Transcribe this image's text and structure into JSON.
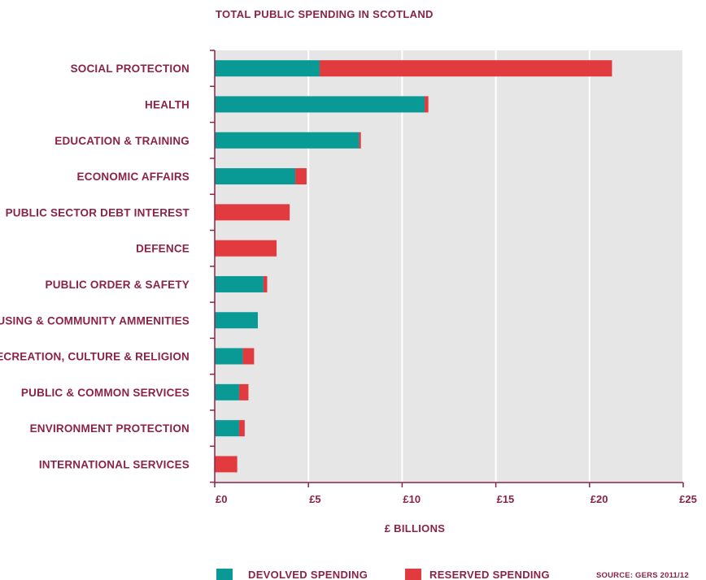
{
  "colors": {
    "devolved": "#0a9a96",
    "reserved": "#e23b3f",
    "text": "#8b2346",
    "plot_background": "#e6e6e6",
    "gridline": "#ffffff",
    "axis": "#8b2346"
  },
  "source": "SOURCE: GERS 2011/12",
  "chart_data": {
    "type": "bar",
    "orientation": "horizontal",
    "stacked": true,
    "title": "TOTAL PUBLIC SPENDING IN SCOTLAND",
    "xlabel": "£ BILLIONS",
    "ylabel": "",
    "xlim": [
      0,
      25
    ],
    "x_ticks": [
      0,
      5,
      10,
      15,
      20,
      25
    ],
    "x_tick_labels": [
      "£0",
      "£5",
      "£10",
      "£15",
      "£20",
      "£25"
    ],
    "grid": true,
    "legend_position": "bottom",
    "categories": [
      "SOCIAL PROTECTION",
      "HEALTH",
      "EDUCATION & TRAINING",
      "ECONOMIC AFFAIRS",
      "PUBLIC SECTOR DEBT INTEREST",
      "DEFENCE",
      "PUBLIC ORDER & SAFETY",
      "HOUSING & COMMUNITY AMMENITIES",
      "RECREATION, CULTURE & RELIGION",
      "PUBLIC & COMMON SERVICES",
      "ENVIRONMENT PROTECTION",
      "INTERNATIONAL SERVICES"
    ],
    "series": [
      {
        "name": "DEVOLVED SPENDING",
        "values": [
          5.6,
          11.2,
          7.7,
          4.3,
          0,
          0,
          2.6,
          2.3,
          1.5,
          1.3,
          1.3,
          0
        ]
      },
      {
        "name": "RESERVED SPENDING",
        "values": [
          15.6,
          0.2,
          0.1,
          0.6,
          4.0,
          3.3,
          0.2,
          0,
          0.6,
          0.5,
          0.3,
          1.2
        ]
      }
    ]
  }
}
